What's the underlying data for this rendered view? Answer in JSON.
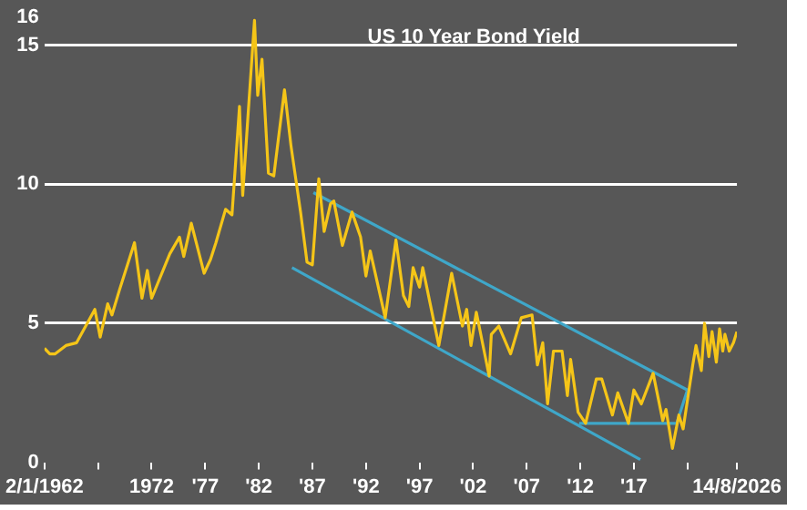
{
  "chart_data": {
    "type": "line",
    "title": "US 10 Year Bond Yield",
    "xlim": [
      1962.0,
      2026.62
    ],
    "xticks": [
      {
        "value": 1962.0,
        "label": "2/1/1962"
      },
      {
        "value": 1967,
        "label": null
      },
      {
        "value": 1972,
        "label": "1972"
      },
      {
        "value": 1977,
        "label": "'77"
      },
      {
        "value": 1982,
        "label": "'82"
      },
      {
        "value": 1987,
        "label": "'87"
      },
      {
        "value": 1992,
        "label": "'92"
      },
      {
        "value": 1997,
        "label": "'97"
      },
      {
        "value": 2002,
        "label": "'02"
      },
      {
        "value": 2007,
        "label": "'07"
      },
      {
        "value": 2012,
        "label": "'12"
      },
      {
        "value": 2017,
        "label": "'17"
      },
      {
        "value": 2022,
        "label": null
      },
      {
        "value": 2026.62,
        "label": "14/8/2026"
      }
    ],
    "ylim": [
      0,
      16
    ],
    "yticks": [
      0,
      5,
      10,
      15,
      16
    ],
    "grid": "y",
    "marker": "none",
    "series": [
      {
        "color": "#f5c518",
        "x": [
          1962.0,
          1962.5,
          1963.0,
          1964.0,
          1965.0,
          1966.7,
          1967.2,
          1967.9,
          1968.3,
          1969.0,
          1970.4,
          1971.1,
          1971.6,
          1972.0,
          1973.7,
          1974.6,
          1975.0,
          1975.7,
          1976.9,
          1977.5,
          1978.0,
          1978.9,
          1979.5,
          1980.2,
          1980.5,
          1981.0,
          1981.6,
          1981.9,
          1982.3,
          1982.9,
          1983.4,
          1984.4,
          1985.0,
          1985.9,
          1986.5,
          1987.0,
          1987.6,
          1988.1,
          1988.7,
          1989.0,
          1989.8,
          1990.7,
          1991.5,
          1992.0,
          1992.4,
          1993.8,
          1994.8,
          1995.5,
          1996.0,
          1996.4,
          1997.0,
          1997.3,
          1998.8,
          2000.0,
          2001.0,
          2001.4,
          2001.8,
          2002.3,
          2003.5,
          2003.7,
          2004.4,
          2005.5,
          2006.5,
          2007.5,
          2008.0,
          2008.5,
          2008.95,
          2009.5,
          2010.3,
          2010.8,
          2011.1,
          2011.8,
          2012.5,
          2013.5,
          2014.0,
          2015.0,
          2015.5,
          2016.5,
          2017.0,
          2017.7,
          2018.8,
          2019.7,
          2020.0,
          2020.6,
          2021.2,
          2021.6,
          2022.5,
          2022.8,
          2023.3,
          2023.6,
          2024.0,
          2024.3,
          2024.7,
          2025.0,
          2025.3,
          2025.5,
          2025.9,
          2026.3,
          2026.62
        ],
        "values": [
          4.1,
          3.9,
          3.9,
          4.2,
          4.3,
          5.5,
          4.5,
          5.7,
          5.3,
          6.2,
          7.9,
          5.9,
          6.9,
          5.9,
          7.5,
          8.1,
          7.4,
          8.6,
          6.8,
          7.3,
          7.9,
          9.1,
          8.9,
          12.8,
          9.6,
          12.5,
          15.9,
          13.2,
          14.5,
          10.4,
          10.3,
          13.4,
          11.4,
          9.0,
          7.2,
          7.1,
          10.2,
          8.3,
          9.3,
          9.4,
          7.8,
          9.0,
          8.1,
          6.7,
          7.6,
          5.2,
          8.0,
          6.0,
          5.6,
          7.0,
          6.3,
          7.0,
          4.2,
          6.8,
          4.9,
          5.5,
          4.2,
          5.4,
          3.1,
          4.6,
          4.9,
          3.9,
          5.2,
          5.3,
          3.5,
          4.3,
          2.1,
          4.0,
          4.0,
          2.4,
          3.7,
          1.8,
          1.4,
          3.0,
          3.0,
          1.7,
          2.5,
          1.4,
          2.6,
          2.1,
          3.2,
          1.5,
          1.9,
          0.5,
          1.7,
          1.2,
          3.5,
          4.2,
          3.3,
          5.0,
          3.8,
          4.7,
          3.6,
          4.8,
          4.0,
          4.6,
          4.0,
          4.3,
          4.7
        ]
      },
      {
        "type": "line",
        "color": "#3fa7c9",
        "x": [
          1987.1,
          2022.0
        ],
        "values": [
          9.7,
          2.6
        ]
      },
      {
        "type": "line",
        "color": "#3fa7c9",
        "x": [
          1985.1,
          2017.6
        ],
        "values": [
          7.0,
          0.1
        ]
      },
      {
        "type": "line",
        "color": "#3fa7c9",
        "x": [
          2011.9,
          2021.0,
          2022.0
        ],
        "values": [
          1.4,
          1.4,
          2.6
        ]
      }
    ]
  }
}
